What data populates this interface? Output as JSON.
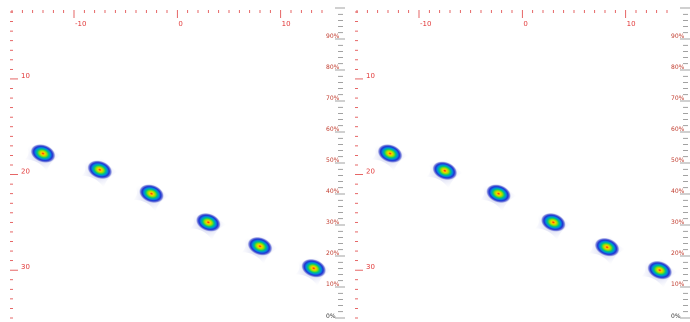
{
  "chart_data": [
    {
      "type": "heatmap",
      "x_ticks": [
        -10,
        0,
        10
      ],
      "x_tick_labels": [
        "-10",
        "0",
        "10"
      ],
      "y_ticks": [
        10,
        20,
        30
      ],
      "y_tick_labels": [
        "10",
        "20",
        "30"
      ],
      "xlim": [
        -16,
        14
      ],
      "ylim": [
        3,
        35
      ],
      "colorbar": {
        "ticks": [
          0,
          10,
          20,
          30,
          40,
          50,
          60,
          70,
          80,
          90
        ],
        "labels": [
          "0%",
          "10%",
          "20%",
          "30%",
          "40%",
          "50%",
          "60%",
          "70%",
          "80%",
          "90%"
        ]
      },
      "blobs": [
        {
          "x": -13,
          "y": 17.8,
          "intensity": 1.0
        },
        {
          "x": -7.5,
          "y": 19.5,
          "intensity": 1.0
        },
        {
          "x": -2.5,
          "y": 22.0,
          "intensity": 1.0
        },
        {
          "x": 3.0,
          "y": 25.0,
          "intensity": 1.0
        },
        {
          "x": 8.0,
          "y": 27.5,
          "intensity": 1.0
        },
        {
          "x": 13.2,
          "y": 29.8,
          "intensity": 1.0
        }
      ]
    },
    {
      "type": "heatmap",
      "x_ticks": [
        -10,
        0,
        10
      ],
      "x_tick_labels": [
        "-10",
        "0",
        "10"
      ],
      "y_ticks": [
        10,
        20,
        30
      ],
      "y_tick_labels": [
        "10",
        "20",
        "30"
      ],
      "xlim": [
        -16,
        14
      ],
      "ylim": [
        3,
        35
      ],
      "colorbar": {
        "ticks": [
          0,
          10,
          20,
          30,
          40,
          50,
          60,
          70,
          80,
          90
        ],
        "labels": [
          "0%",
          "10%",
          "20%",
          "30%",
          "40%",
          "50%",
          "60%",
          "70%",
          "80%",
          "90%"
        ]
      },
      "blobs": [
        {
          "x": -12.8,
          "y": 17.8,
          "intensity": 1.0
        },
        {
          "x": -7.5,
          "y": 19.6,
          "intensity": 1.0
        },
        {
          "x": -2.3,
          "y": 22.0,
          "intensity": 1.0
        },
        {
          "x": 3.0,
          "y": 25.0,
          "intensity": 1.0
        },
        {
          "x": 8.2,
          "y": 27.6,
          "intensity": 1.0
        },
        {
          "x": 13.3,
          "y": 30.0,
          "intensity": 1.0
        }
      ]
    }
  ]
}
